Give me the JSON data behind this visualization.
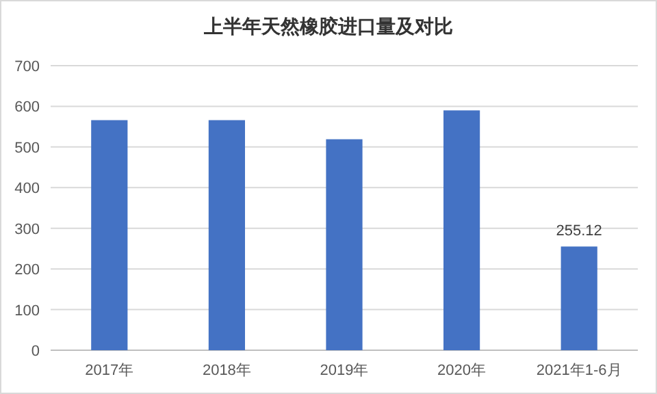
{
  "chart_data": {
    "type": "bar",
    "title": "上半年天然橡胶进口量及对比",
    "categories": [
      "2017年",
      "2018年",
      "2019年",
      "2020年",
      "2021年1-6月"
    ],
    "values": [
      566,
      566,
      519,
      590,
      255.12
    ],
    "value_labels": [
      null,
      null,
      null,
      null,
      "255.12"
    ],
    "color": "#4472c4",
    "ylim": [
      0,
      700
    ],
    "yticks": [
      0,
      100,
      200,
      300,
      400,
      500,
      600,
      700
    ],
    "grid": "y"
  }
}
